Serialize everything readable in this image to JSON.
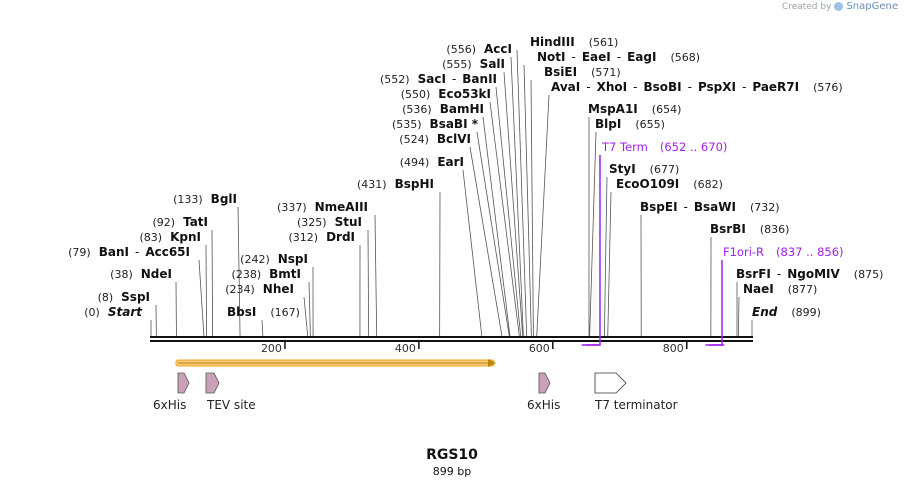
{
  "watermark": {
    "prefix": "Created by",
    "brand": "SnapGene"
  },
  "plasmid": {
    "name": "RGS10",
    "size": "899 bp"
  },
  "axis": {
    "ticks": [
      200,
      400,
      600,
      800
    ]
  },
  "sites": [
    {
      "pos": "(556)",
      "parts": [
        "AccI"
      ]
    },
    {
      "pos": "(555)",
      "parts": [
        "SalI"
      ]
    },
    {
      "pos": "(552)",
      "parts": [
        "SacI",
        "BanII"
      ]
    },
    {
      "pos": "(550)",
      "parts": [
        "Eco53kI"
      ]
    },
    {
      "pos": "(536)",
      "parts": [
        "BamHI"
      ]
    },
    {
      "pos": "(535)",
      "parts": [
        "BsaBI *"
      ]
    },
    {
      "pos": "(524)",
      "parts": [
        "BclVI"
      ]
    },
    {
      "pos": "(494)",
      "parts": [
        "EarI"
      ]
    },
    {
      "pos": "(431)",
      "parts": [
        "BspHI"
      ]
    },
    {
      "pos": "(337)",
      "parts": [
        "NmeAIII"
      ]
    },
    {
      "pos": "(325)",
      "parts": [
        "StuI"
      ]
    },
    {
      "pos": "(312)",
      "parts": [
        "DrdI"
      ]
    },
    {
      "pos": "(242)",
      "parts": [
        "NspI"
      ]
    },
    {
      "pos": "(238)",
      "parts": [
        "BmtI"
      ]
    },
    {
      "pos": "(234)",
      "parts": [
        "NheI"
      ]
    },
    {
      "pos": "(133)",
      "parts": [
        "BglI"
      ]
    },
    {
      "pos": "(92)",
      "parts": [
        "TatI"
      ]
    },
    {
      "pos": "(83)",
      "parts": [
        "KpnI"
      ]
    },
    {
      "pos": "(79)",
      "parts": [
        "BanI",
        "Acc65I"
      ]
    },
    {
      "pos": "(38)",
      "parts": [
        "NdeI"
      ]
    },
    {
      "pos": "(8)",
      "parts": [
        "SspI"
      ]
    },
    {
      "pos": "(0)",
      "parts": [
        "Start"
      ]
    },
    {
      "pos": "(167)",
      "parts": [
        "BbsI"
      ]
    },
    {
      "pos": "(561)",
      "parts": [
        "HindIII"
      ]
    },
    {
      "pos": "(568)",
      "parts": [
        "NotI",
        "EaeI",
        "EagI"
      ]
    },
    {
      "pos": "(571)",
      "parts": [
        "BsiEI"
      ]
    },
    {
      "pos": "(576)",
      "parts": [
        "AvaI",
        "XhoI",
        "BsoBI",
        "PspXI",
        "PaeR7I"
      ]
    },
    {
      "pos": "(654)",
      "parts": [
        "MspA1I"
      ]
    },
    {
      "pos": "(655)",
      "parts": [
        "BlpI"
      ]
    },
    {
      "pos": "(677)",
      "parts": [
        "StyI"
      ]
    },
    {
      "pos": "(682)",
      "parts": [
        "EcoO109I"
      ]
    },
    {
      "pos": "(732)",
      "parts": [
        "BspEI",
        "BsaWI"
      ]
    },
    {
      "pos": "(836)",
      "parts": [
        "BsrBI"
      ]
    },
    {
      "pos": "(875)",
      "parts": [
        "BsrFI",
        "NgoMIV"
      ]
    },
    {
      "pos": "(877)",
      "parts": [
        "NaeI"
      ]
    },
    {
      "pos": "(899)",
      "parts": [
        "End"
      ]
    }
  ],
  "primers": [
    {
      "name": "T7 Term",
      "range": "(652 .. 670)",
      "color": "#a020f0"
    },
    {
      "name": "F1ori-R",
      "range": "(837 .. 856)",
      "color": "#a020f0"
    }
  ],
  "features": [
    {
      "label": "6xHis",
      "type": "his-tag",
      "color": "#c9a0b8"
    },
    {
      "label": "TEV site",
      "type": "protease-site",
      "color": "#c9a0b8"
    },
    {
      "label": "6xHis",
      "type": "his-tag",
      "color": "#c9a0b8"
    },
    {
      "label": "T7 terminator",
      "type": "terminator",
      "color": "#ffffff"
    }
  ],
  "orf": {
    "color": "#f5a623"
  }
}
